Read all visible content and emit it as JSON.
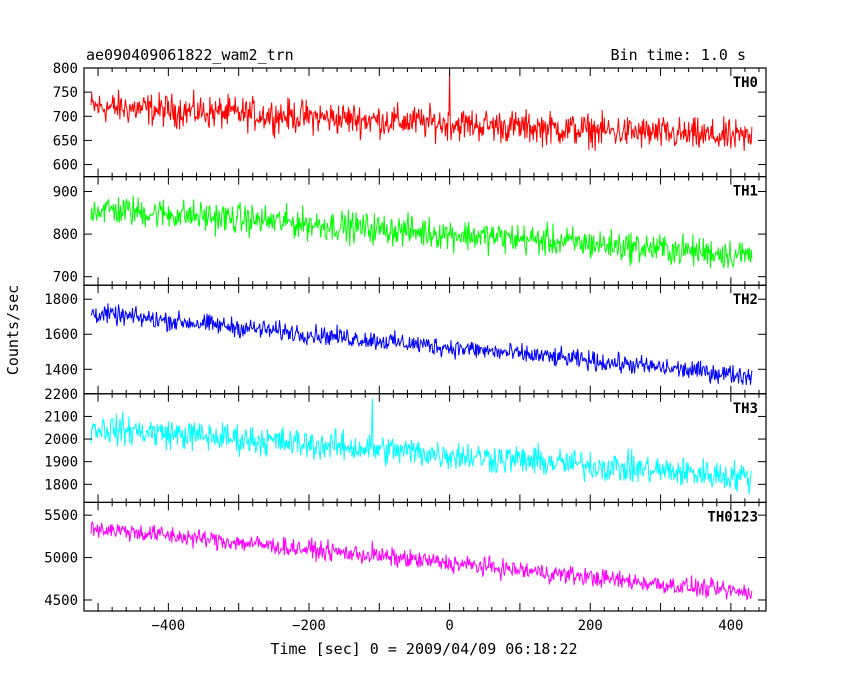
{
  "header": {
    "title": "ae090409061822_wam2_trn",
    "bin_time": "Bin time: 1.0 s"
  },
  "chart_data": {
    "type": "line",
    "xlabel": "Time [sec] 0 = 2009/04/09 06:18:22",
    "ylabel": "Counts/sec",
    "xlim": [
      -520,
      450
    ],
    "x_ticks": [
      -400,
      -200,
      0,
      200,
      400
    ],
    "x_range": [
      -510,
      430
    ],
    "series": [
      {
        "name": "TH0",
        "color": "#ff0000",
        "ylim": [
          575,
          800
        ],
        "y_ticks": [
          600,
          650,
          700,
          750,
          800
        ],
        "start_level": 720,
        "end_level": 655,
        "noise": 28,
        "spikes": [
          {
            "x": 0,
            "value": 790
          }
        ]
      },
      {
        "name": "TH1",
        "color": "#00ff00",
        "ylim": [
          680,
          935
        ],
        "y_ticks": [
          700,
          800,
          900
        ],
        "start_level": 860,
        "end_level": 750,
        "noise": 30,
        "spikes": []
      },
      {
        "name": "TH2",
        "color": "#0000ff",
        "ylim": [
          1260,
          1880
        ],
        "y_ticks": [
          1400,
          1600,
          1800
        ],
        "start_level": 1720,
        "end_level": 1360,
        "noise": 45,
        "spikes": []
      },
      {
        "name": "TH3",
        "color": "#00ffff",
        "ylim": [
          1720,
          2200
        ],
        "y_ticks": [
          1800,
          1900,
          2000,
          2100,
          2200
        ],
        "start_level": 2050,
        "end_level": 1830,
        "noise": 55,
        "spikes": [
          {
            "x": -110,
            "value": 2180
          }
        ]
      },
      {
        "name": "TH0123",
        "color": "#ff00ff",
        "ylim": [
          4370,
          5650
        ],
        "y_ticks": [
          4500,
          5000,
          5500
        ],
        "start_level": 5350,
        "end_level": 4580,
        "noise": 90,
        "spikes": [
          {
            "x": -110,
            "value": 5200
          }
        ]
      }
    ]
  }
}
